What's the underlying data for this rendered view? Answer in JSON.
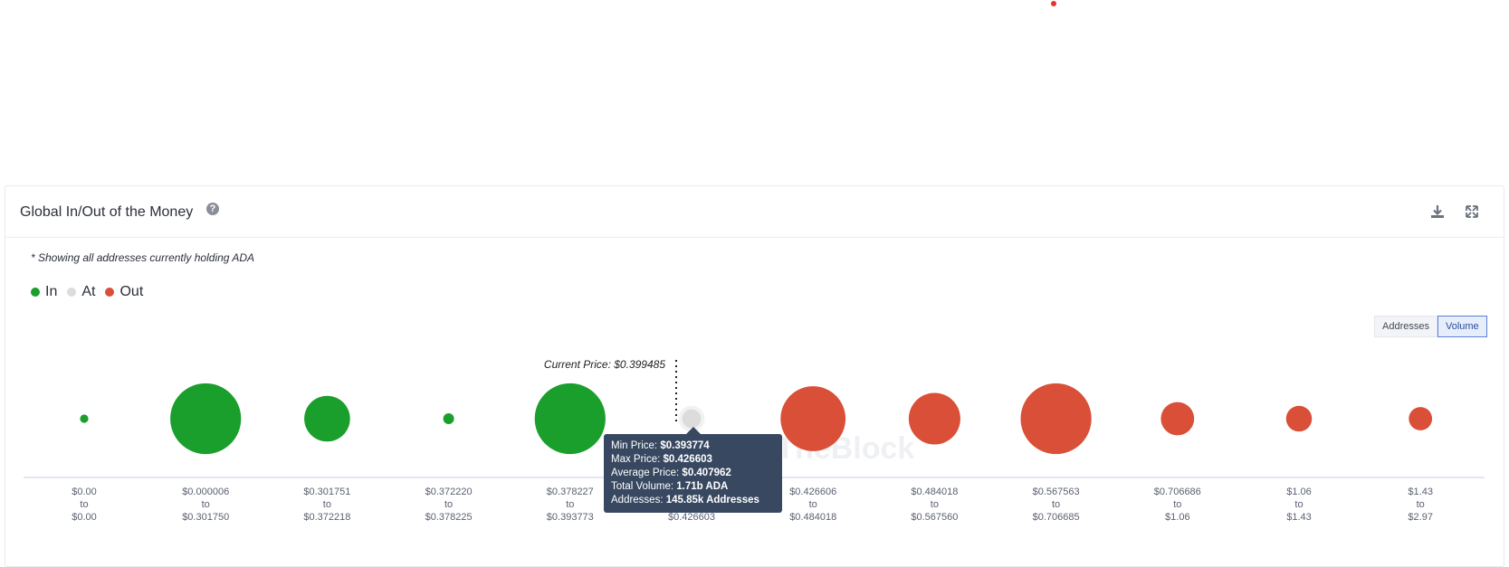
{
  "panel": {
    "title": "Global In/Out of the Money",
    "note": "* Showing all addresses currently holding ADA",
    "help_icon": "question-circle-icon",
    "download_icon": "download-icon",
    "expand_icon": "expand-icon"
  },
  "legend": [
    {
      "label": "In",
      "color": "#1a9e2c"
    },
    {
      "label": "At",
      "color": "#dcdcdc"
    },
    {
      "label": "Out",
      "color": "#d94f38"
    }
  ],
  "toggle": {
    "addresses": "Addresses",
    "volume": "Volume",
    "active": "Volume"
  },
  "tooltip": {
    "min_label": "Min Price:",
    "min_value": "$0.393774",
    "max_label": "Max Price:",
    "max_value": "$0.426603",
    "avg_label": "Average Price:",
    "avg_value": "$0.407962",
    "vol_label": "Total Volume:",
    "vol_value": "1.71b ADA",
    "addr_label": "Addresses:",
    "addr_value": "145.85k Addresses"
  },
  "chart_data": {
    "type": "bubble",
    "current_price_label": "Current Price: $0.399485",
    "current_price_after_index": 4,
    "statuses": [
      "in",
      "in",
      "in",
      "in",
      "in",
      "at",
      "out",
      "out",
      "out",
      "out",
      "out",
      "out"
    ],
    "ranges": [
      {
        "from": "$0.00",
        "to": "$0.00"
      },
      {
        "from": "$0.000006",
        "to": "$0.301750"
      },
      {
        "from": "$0.301751",
        "to": "$0.372218"
      },
      {
        "from": "$0.372220",
        "to": "$0.378225"
      },
      {
        "from": "$0.378227",
        "to": "$0.393773"
      },
      {
        "from": "$0.393774",
        "to": "$0.426603"
      },
      {
        "from": "$0.426606",
        "to": "$0.484018"
      },
      {
        "from": "$0.484018",
        "to": "$0.567560"
      },
      {
        "from": "$0.567563",
        "to": "$0.706685"
      },
      {
        "from": "$0.706686",
        "to": "$1.06"
      },
      {
        "from": "$1.06",
        "to": "$1.43"
      },
      {
        "from": "$1.43",
        "to": "$2.97"
      }
    ],
    "to_word": "to",
    "relative_size": [
      0.1,
      0.85,
      0.55,
      0.13,
      0.85,
      0.27,
      0.78,
      0.62,
      0.85,
      0.4,
      0.31,
      0.28
    ]
  },
  "watermark": "IntoTheBlock"
}
